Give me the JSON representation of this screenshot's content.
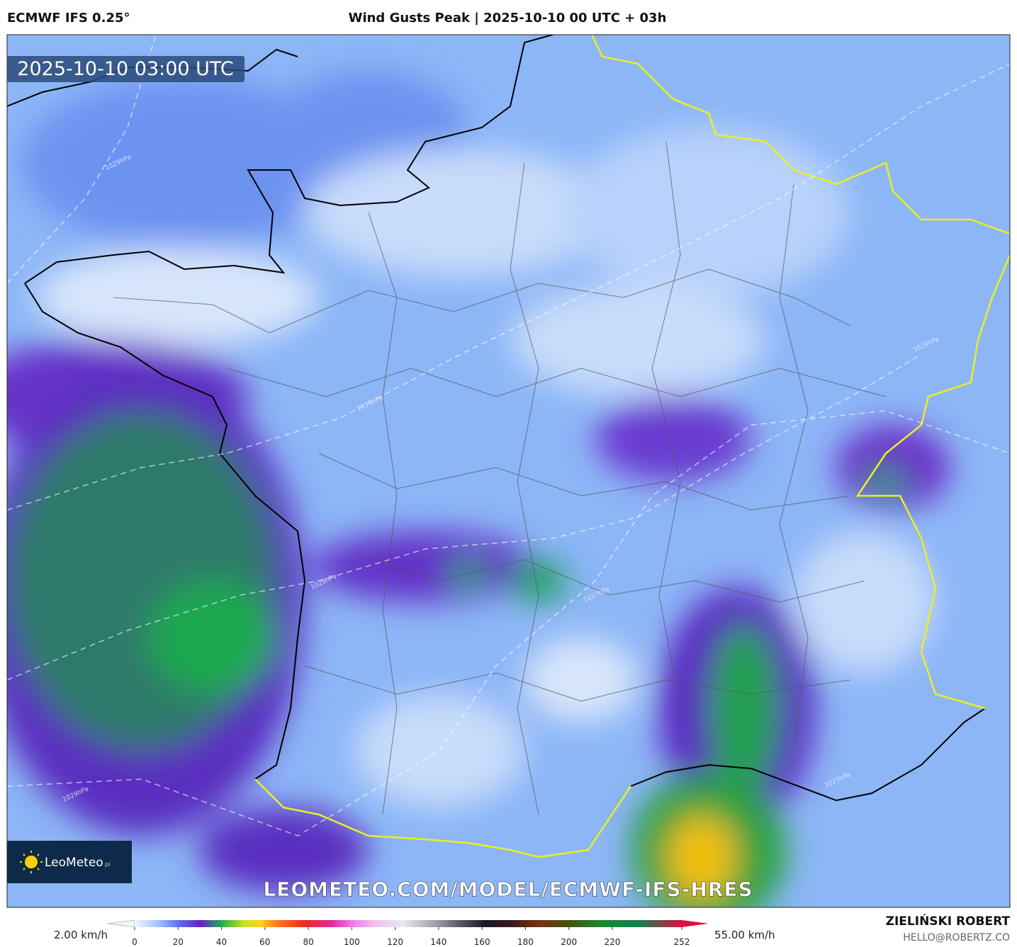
{
  "header": {
    "model": "ECMWF IFS 0.25°",
    "title": "Wind Gusts Peak | 2025-10-10 00 UTC + 03h"
  },
  "map": {
    "timestamp": "2025-10-10 03:00 UTC",
    "logo": "LeoMeteo",
    "logo_suffix": "pl",
    "watermark": "LEOMETEO.COM/MODEL/ECMWF-IFS-HRES",
    "isobar_labels": [
      "1029hPa",
      "1031hPa",
      "1029hPa",
      "1027hPa",
      "1029hPa",
      "1023hPa",
      "1029hPa"
    ]
  },
  "colorbar": {
    "min_label": "2.00 km/h",
    "max_label": "55.00 km/h",
    "lim": [
      0,
      252
    ],
    "ticks": [
      0,
      20,
      40,
      60,
      80,
      100,
      120,
      140,
      160,
      180,
      200,
      220,
      252
    ]
  },
  "credit": {
    "name": "ZIELIŃSKI ROBERT",
    "email": "HELLO@ROBERTZ.CO"
  }
}
